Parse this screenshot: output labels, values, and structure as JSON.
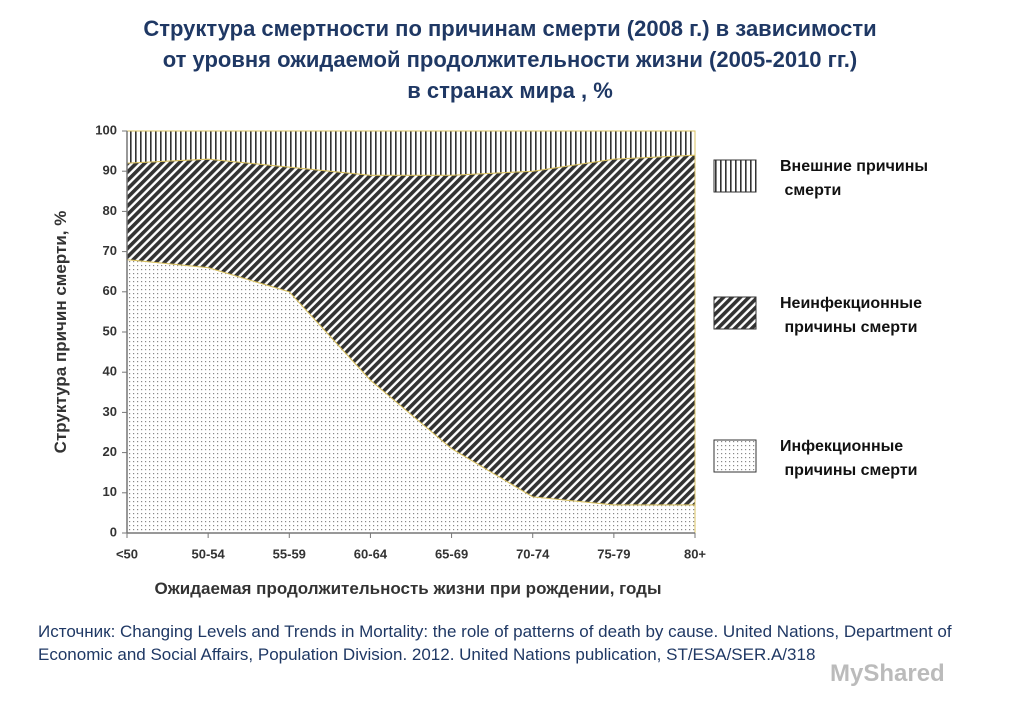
{
  "chart_data": {
    "type": "area",
    "stacked": true,
    "title_lines": [
      "Структура смертности по причинам смерти (2008 г.) в зависимости",
      "от уровня ожидаемой продолжительности жизни (2005-2010 гг.)",
      "в странах мира , %"
    ],
    "x_label": "Ожидаемая продолжительность жизни при рождении, годы",
    "y_label": "Структура причин смерти, %",
    "categories": [
      "<50",
      "50-54",
      "55-59",
      "60-64",
      "65-69",
      "70-74",
      "75-79",
      "80+"
    ],
    "series": [
      {
        "name": "Инфекционные причины смерти",
        "pattern": "dots",
        "values": [
          68,
          66,
          60,
          38,
          21,
          9,
          7,
          7
        ]
      },
      {
        "name": "Неинфекционные причины смерти",
        "pattern": "diagonal",
        "values": [
          24,
          27,
          31,
          51,
          68,
          81,
          86,
          87
        ]
      },
      {
        "name": "Внешние причины смерти",
        "pattern": "vertical",
        "values": [
          8,
          7,
          9,
          11,
          11,
          10,
          7,
          6
        ]
      }
    ],
    "ylim": [
      0,
      100
    ],
    "yticks": [
      0,
      10,
      20,
      30,
      40,
      50,
      60,
      70,
      80,
      90,
      100
    ],
    "source": "Источник: Changing Levels and Trends in Mortality: the role of patterns of death by cause. United Nations, Department of Economic and Social Affairs, Population Division. 2012. United Nations publication, ST/ESA/SER.A/318",
    "watermark": "MyShared"
  }
}
